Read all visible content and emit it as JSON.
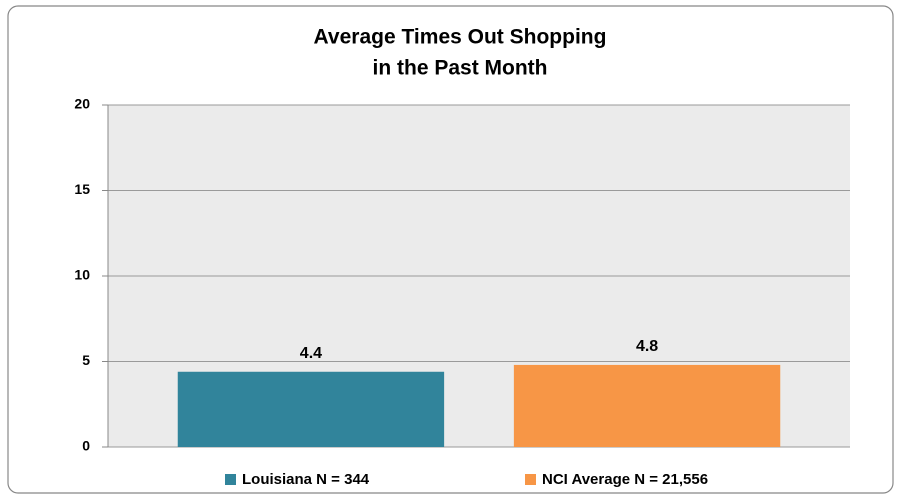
{
  "chart_data": {
    "type": "bar",
    "title": [
      "Average Times Out Shopping",
      "in the Past Month"
    ],
    "categories": [
      null
    ],
    "series": [
      {
        "name": "Louisiana N = 344",
        "color": "#31849b",
        "values": [
          4.4
        ]
      },
      {
        "name": "NCI Average N = 21,556",
        "color": "#f79646",
        "values": [
          4.8
        ]
      }
    ],
    "ylim": [
      0,
      20
    ],
    "yticks": [
      0,
      5,
      10,
      15,
      20
    ],
    "grid": true,
    "legend": "bottom"
  }
}
